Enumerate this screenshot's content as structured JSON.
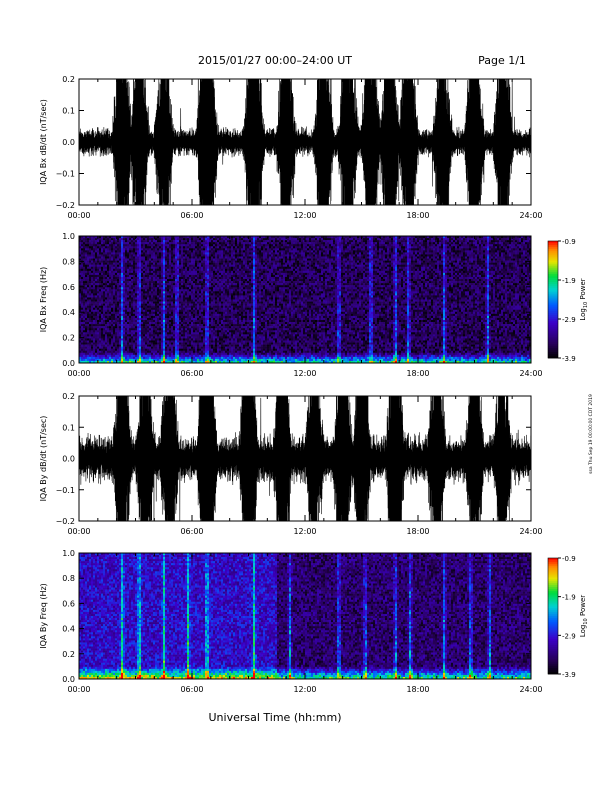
{
  "header": {
    "title": "2015/01/27  00:00–24:00 UT",
    "page": "Page 1/1"
  },
  "footer": {
    "xlabel": "Universal Time (hh:mm)",
    "side_stamp": "ssa Thu Sep 19 00:00:00 CDT 2019"
  },
  "colorbar": {
    "label": "Log",
    "label_sub": "10",
    "label_tail": " Power",
    "ticks": [
      "-0.9",
      "-1.9",
      "-2.9",
      "-3.9"
    ],
    "range": [
      -3.9,
      -0.9
    ]
  },
  "chart_data": [
    {
      "type": "line",
      "id": "bx-dbdt",
      "ylabel": "IQA Bx dB/dt (nT/sec)",
      "ylim": [
        -0.2,
        0.2
      ],
      "yticks": [
        "0.2",
        "0.1",
        "0.0",
        "−0.1",
        "−0.2"
      ],
      "ytick_values": [
        0.2,
        0.1,
        0.0,
        -0.1,
        -0.2
      ],
      "xlim": [
        0,
        24
      ],
      "xticks": [
        "00:00",
        "06:00",
        "12:00",
        "18:00",
        "24:00"
      ],
      "baseline_amplitude": 0.035,
      "bursts_hours": [
        [
          2.3,
          0.5
        ],
        [
          3.2,
          0.45
        ],
        [
          4.5,
          0.4
        ],
        [
          6.8,
          0.75
        ],
        [
          9.3,
          0.6
        ],
        [
          11.0,
          0.45
        ],
        [
          13.0,
          0.5
        ],
        [
          14.3,
          0.55
        ],
        [
          15.5,
          0.55
        ],
        [
          16.5,
          0.5
        ],
        [
          17.5,
          0.45
        ],
        [
          19.3,
          0.45
        ],
        [
          21.0,
          0.5
        ],
        [
          22.5,
          0.45
        ]
      ]
    },
    {
      "type": "heatmap",
      "id": "bx-spectrogram",
      "ylabel": "IQA Bx Freq (Hz)",
      "ylim": [
        0.0,
        1.0
      ],
      "yticks": [
        "1.0",
        "0.8",
        "0.6",
        "0.4",
        "0.2",
        "0.0"
      ],
      "ytick_values": [
        1.0,
        0.8,
        0.6,
        0.4,
        0.2,
        0.0
      ],
      "xlim": [
        0,
        24
      ],
      "xticks": [
        "00:00",
        "06:00",
        "12:00",
        "18:00",
        "24:00"
      ],
      "colorbar_range": [
        -3.9,
        -0.9
      ],
      "background_level": 0.12,
      "vertical_streaks_hours": [
        2.3,
        3.2,
        4.5,
        5.2,
        6.8,
        9.3,
        13.8,
        15.5,
        16.8,
        17.5,
        19.4,
        21.7
      ],
      "low_freq_band_hz": 0.08
    },
    {
      "type": "line",
      "id": "by-dbdt",
      "ylabel": "IQA By dB/dt (nT/sec)",
      "ylim": [
        -0.2,
        0.2
      ],
      "yticks": [
        "0.2",
        "0.1",
        "0.0",
        "−0.1",
        "−0.2"
      ],
      "ytick_values": [
        0.2,
        0.1,
        0.0,
        -0.1,
        -0.2
      ],
      "xlim": [
        0,
        24
      ],
      "xticks": [
        "00:00",
        "06:00",
        "12:00",
        "18:00",
        "24:00"
      ],
      "baseline_amplitude": 0.06,
      "bursts_hours": [
        [
          2.3,
          0.5
        ],
        [
          3.5,
          0.45
        ],
        [
          4.8,
          0.5
        ],
        [
          6.8,
          0.75
        ],
        [
          9.0,
          0.6
        ],
        [
          10.8,
          0.5
        ],
        [
          12.5,
          0.45
        ],
        [
          14.0,
          0.55
        ],
        [
          15.0,
          0.5
        ],
        [
          16.8,
          0.55
        ],
        [
          19.0,
          0.5
        ],
        [
          21.0,
          0.45
        ],
        [
          22.5,
          0.4
        ]
      ]
    },
    {
      "type": "heatmap",
      "id": "by-spectrogram",
      "ylabel": "IQA By Freq (Hz)",
      "ylim": [
        0.0,
        1.0
      ],
      "yticks": [
        "1.0",
        "0.8",
        "0.6",
        "0.4",
        "0.2",
        "0.0"
      ],
      "ytick_values": [
        1.0,
        0.8,
        0.6,
        0.4,
        0.2,
        0.0
      ],
      "xlim": [
        0,
        24
      ],
      "xticks": [
        "00:00",
        "06:00",
        "12:00",
        "18:00",
        "24:00"
      ],
      "colorbar_range": [
        -3.9,
        -0.9
      ],
      "background_level": 0.3,
      "dim_after_hours": 10.5,
      "vertical_streaks_hours": [
        2.3,
        3.2,
        4.5,
        5.8,
        6.8,
        9.3,
        11.2,
        13.8,
        15.2,
        16.8,
        17.6,
        19.4,
        20.8,
        21.8
      ],
      "low_freq_band_hz": 0.1
    }
  ]
}
